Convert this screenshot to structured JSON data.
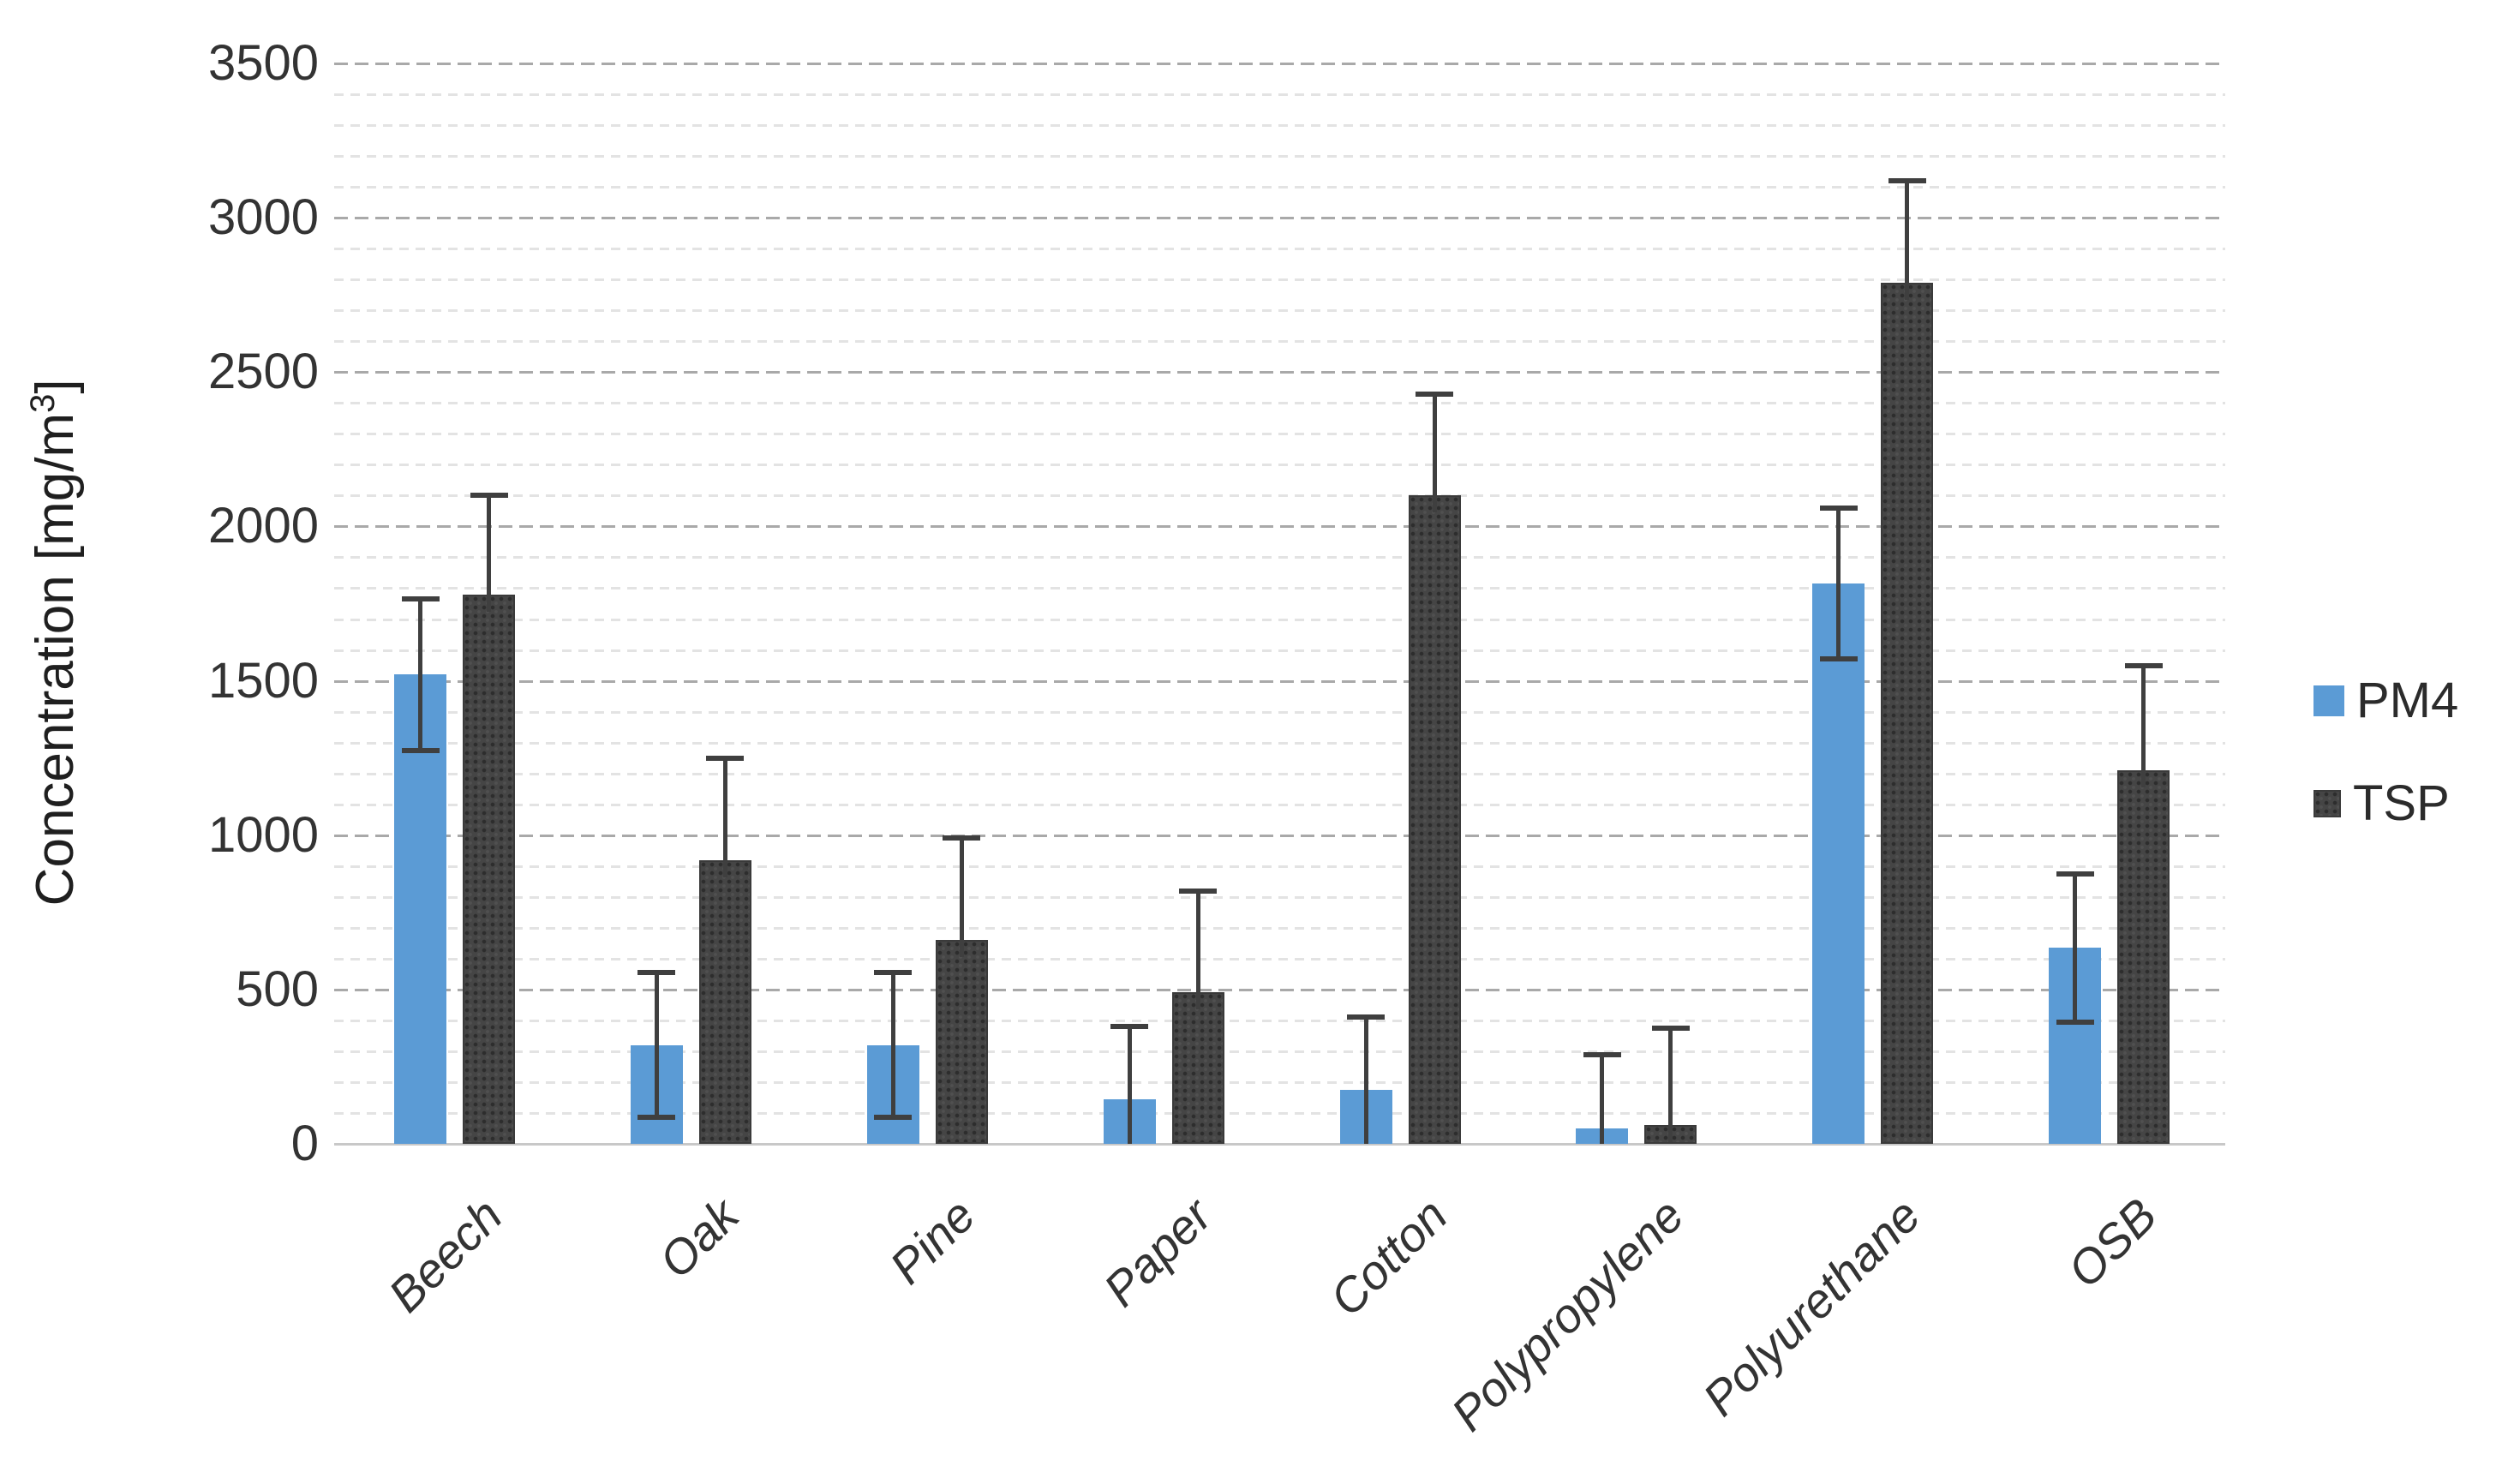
{
  "chart_data": {
    "type": "bar",
    "title": "",
    "xlabel": "",
    "ylabel": "Concentration [mg/m³]",
    "ylim": [
      0,
      3500
    ],
    "y_major_step": 500,
    "y_minor_step": 100,
    "y_tick_labels": [
      "0",
      "500",
      "1000",
      "1500",
      "2000",
      "2500",
      "3000",
      "3500"
    ],
    "categories": [
      "Beech",
      "Oak",
      "Pine",
      "Paper",
      "Cotton",
      "Polypropylene",
      "Polyurethane",
      "OSB"
    ],
    "series": [
      {
        "name": "PM4",
        "color": "#5B9BD5",
        "pattern": "solid",
        "values": [
          1520,
          320,
          320,
          145,
          175,
          50,
          1815,
          635
        ],
        "error": [
          245,
          235,
          235,
          235,
          235,
          240,
          245,
          240
        ]
      },
      {
        "name": "TSP",
        "color": "#454545",
        "pattern": "dotted-texture",
        "values": [
          1780,
          920,
          660,
          490,
          2100,
          60,
          2790,
          1210
        ],
        "error": [
          320,
          330,
          330,
          330,
          330,
          315,
          330,
          340
        ]
      }
    ],
    "error_bars": {
      "color": "#3f3f3f",
      "style": "symmetric, lower half clipped at 0 and hidden inside dark TSP bars"
    },
    "grid": {
      "minor_lines": true,
      "minor_color": "#e3e3e3",
      "major_color": "#a9a9a9",
      "baseline_color": "#c8c8c8",
      "style": "dashed"
    },
    "legend": {
      "position": "right",
      "entries": [
        {
          "label": "PM4",
          "color": "#5B9BD5"
        },
        {
          "label": "TSP",
          "color": "#454545"
        }
      ]
    }
  }
}
